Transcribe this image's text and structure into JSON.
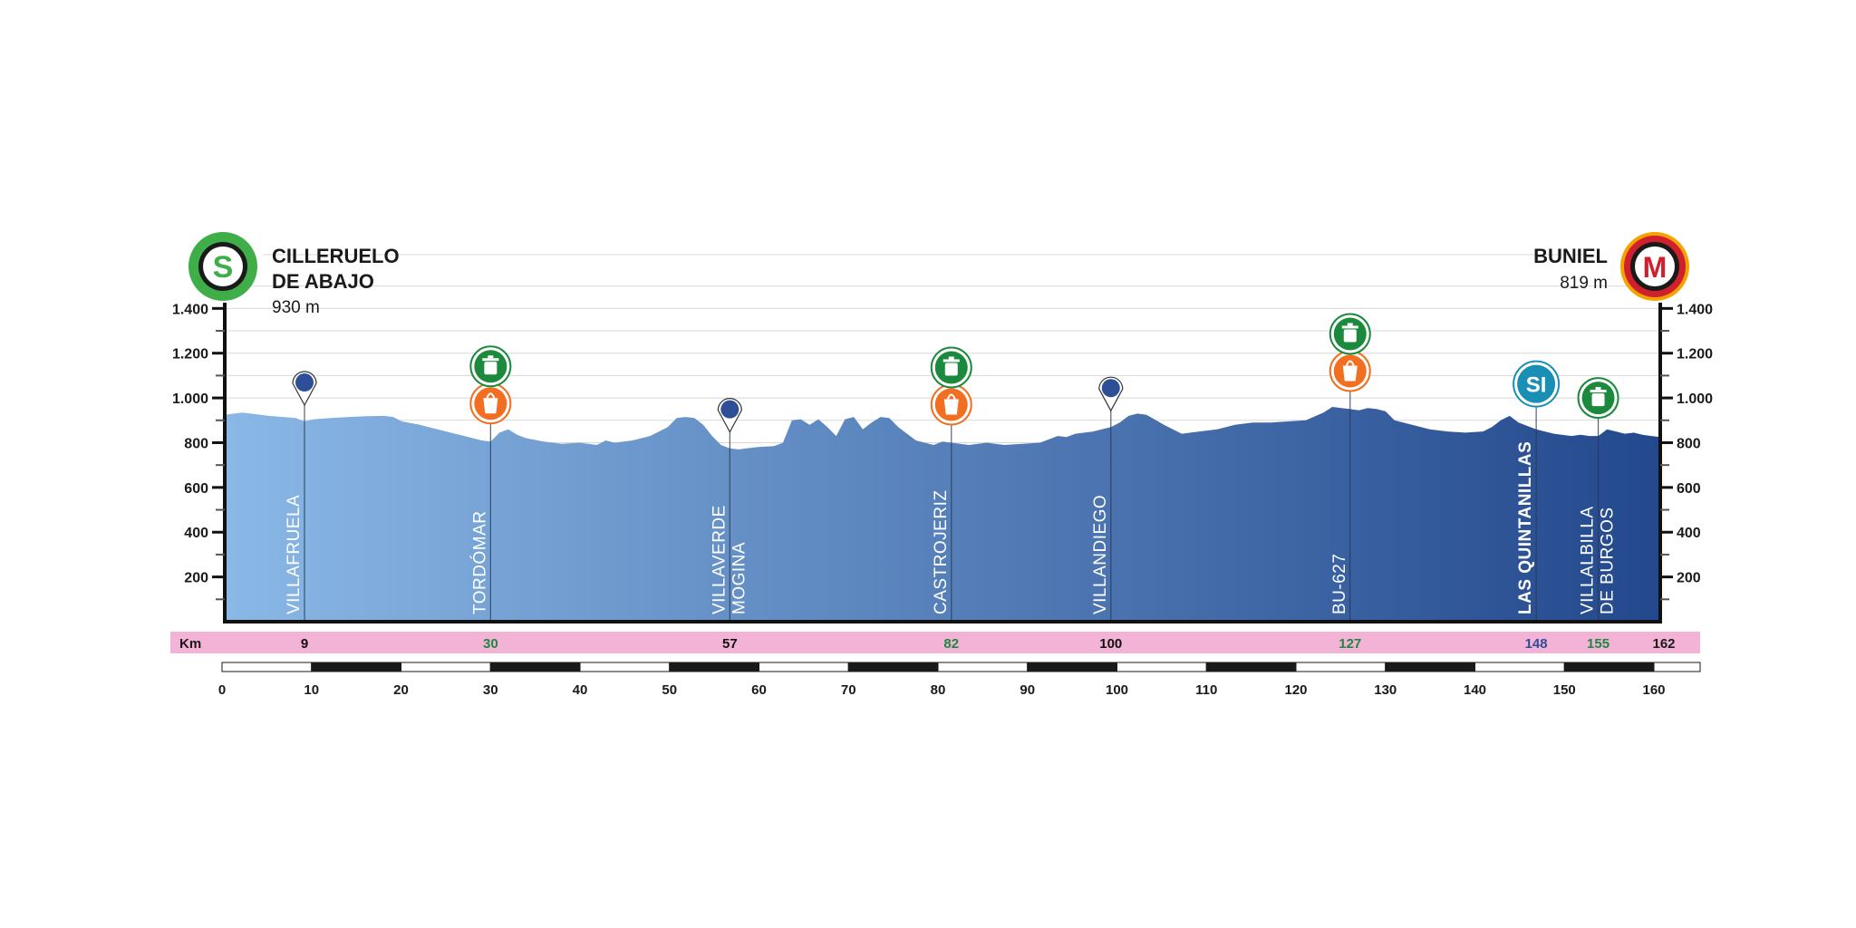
{
  "start": {
    "badge": "S",
    "name_line1": "CILLERUELO",
    "name_line2": "DE ABAJO",
    "altitude_label": "930 m",
    "color": "#3fae49"
  },
  "finish": {
    "badge": "M",
    "name": "BUNIEL",
    "altitude_label": "819 m",
    "color": "#d0202e"
  },
  "colors": {
    "profile_light": "#8ab8e6",
    "profile_dark": "#23488d",
    "km_band": "#f2b3d6",
    "food_zone": "#1b8a3c",
    "feed_point": "#f26f21",
    "sprint": "#1a8fb5",
    "marker": "#2e4f98"
  },
  "chart_data": {
    "type": "area",
    "title": "",
    "xlabel": "",
    "ylabel": "",
    "xlim": [
      0,
      162
    ],
    "ylim": [
      0,
      1450
    ],
    "y_ticks": [
      200,
      400,
      600,
      800,
      1000,
      1200,
      1400
    ],
    "y_tick_labels": [
      "200",
      "400",
      "600",
      "800",
      "1.000",
      "1.200",
      "1.400"
    ],
    "x_ticks": [
      0,
      10,
      20,
      30,
      40,
      50,
      60,
      70,
      80,
      90,
      100,
      110,
      120,
      130,
      140,
      150,
      160
    ],
    "x_tick_labels": [
      "0",
      "10",
      "20",
      "30",
      "40",
      "50",
      "60",
      "70",
      "80",
      "90",
      "100",
      "110",
      "120",
      "130",
      "140",
      "150",
      "160"
    ],
    "grid": true,
    "km_label": "Km",
    "total_km_label": "162",
    "elevation": {
      "x": [
        0,
        2,
        5,
        8,
        9,
        10,
        12,
        14,
        16,
        18,
        19,
        20,
        22,
        24,
        26,
        28,
        29,
        30,
        31,
        32,
        33,
        34,
        36,
        38,
        40,
        42,
        43,
        44,
        46,
        48,
        50,
        51,
        52,
        53,
        54,
        55,
        56,
        57,
        58,
        60,
        62,
        63,
        64,
        65,
        66,
        67,
        68,
        69,
        70,
        71,
        72,
        73,
        74,
        75,
        76,
        77,
        78,
        80,
        81,
        82,
        84,
        86,
        88,
        90,
        92,
        94,
        95,
        96,
        98,
        100,
        101,
        102,
        103,
        104,
        106,
        107,
        108,
        109,
        110,
        112,
        114,
        116,
        118,
        120,
        122,
        124,
        125,
        126,
        127,
        128,
        129,
        130,
        131,
        132,
        134,
        136,
        138,
        140,
        142,
        143,
        144,
        145,
        146,
        148,
        150,
        152,
        153,
        154,
        155,
        156,
        157,
        158,
        159,
        160,
        161,
        162
      ],
      "y": [
        925,
        935,
        920,
        910,
        895,
        905,
        910,
        915,
        918,
        920,
        915,
        895,
        880,
        860,
        840,
        820,
        810,
        805,
        845,
        860,
        835,
        820,
        805,
        795,
        800,
        790,
        810,
        800,
        810,
        830,
        870,
        910,
        915,
        910,
        880,
        830,
        790,
        775,
        770,
        780,
        785,
        800,
        900,
        905,
        880,
        905,
        870,
        830,
        905,
        915,
        860,
        890,
        915,
        910,
        870,
        840,
        810,
        790,
        805,
        800,
        790,
        800,
        790,
        795,
        800,
        830,
        825,
        840,
        850,
        870,
        890,
        920,
        930,
        925,
        880,
        860,
        840,
        845,
        850,
        860,
        880,
        890,
        890,
        895,
        900,
        935,
        960,
        955,
        950,
        945,
        955,
        950,
        940,
        900,
        880,
        860,
        850,
        845,
        850,
        870,
        900,
        920,
        890,
        860,
        840,
        830,
        835,
        830,
        830,
        860,
        850,
        840,
        845,
        835,
        830,
        825
      ]
    },
    "points": [
      {
        "km": 9,
        "km_label": "9",
        "name": "VILLAFRUELA",
        "name2": "",
        "icons": [
          "marker"
        ],
        "label_color": "#111111",
        "bold": false
      },
      {
        "km": 30,
        "km_label": "30",
        "name": "TORDÓMAR",
        "name2": "",
        "icons": [
          "food_zone",
          "feed_point"
        ],
        "label_color": "#1b8a3c",
        "bold": false
      },
      {
        "km": 57,
        "km_label": "57",
        "name": "VILLAVERDE",
        "name2": "MOGINA",
        "icons": [
          "marker"
        ],
        "label_color": "#111111",
        "bold": false
      },
      {
        "km": 82,
        "km_label": "82",
        "name": "CASTROJERIZ",
        "name2": "",
        "icons": [
          "food_zone",
          "feed_point"
        ],
        "label_color": "#1b8a3c",
        "bold": false
      },
      {
        "km": 100,
        "km_label": "100",
        "name": "VILLANDIEGO",
        "name2": "",
        "icons": [
          "marker"
        ],
        "label_color": "#111111",
        "bold": false
      },
      {
        "km": 127,
        "km_label": "127",
        "name": "BU-627",
        "name2": "",
        "icons": [
          "food_zone",
          "feed_point"
        ],
        "label_color": "#1b8a3c",
        "bold": false
      },
      {
        "km": 148,
        "km_label": "148",
        "name": "LAS QUINTANILLAS",
        "name2": "",
        "icons": [
          "sprint"
        ],
        "label_color": "#2e4f98",
        "bold": true
      },
      {
        "km": 155,
        "km_label": "155",
        "name": "VILLALBILLA",
        "name2": "DE BURGOS",
        "icons": [
          "food_zone"
        ],
        "label_color": "#1b8a3c",
        "bold": false
      }
    ],
    "sprint_label": "SI"
  }
}
